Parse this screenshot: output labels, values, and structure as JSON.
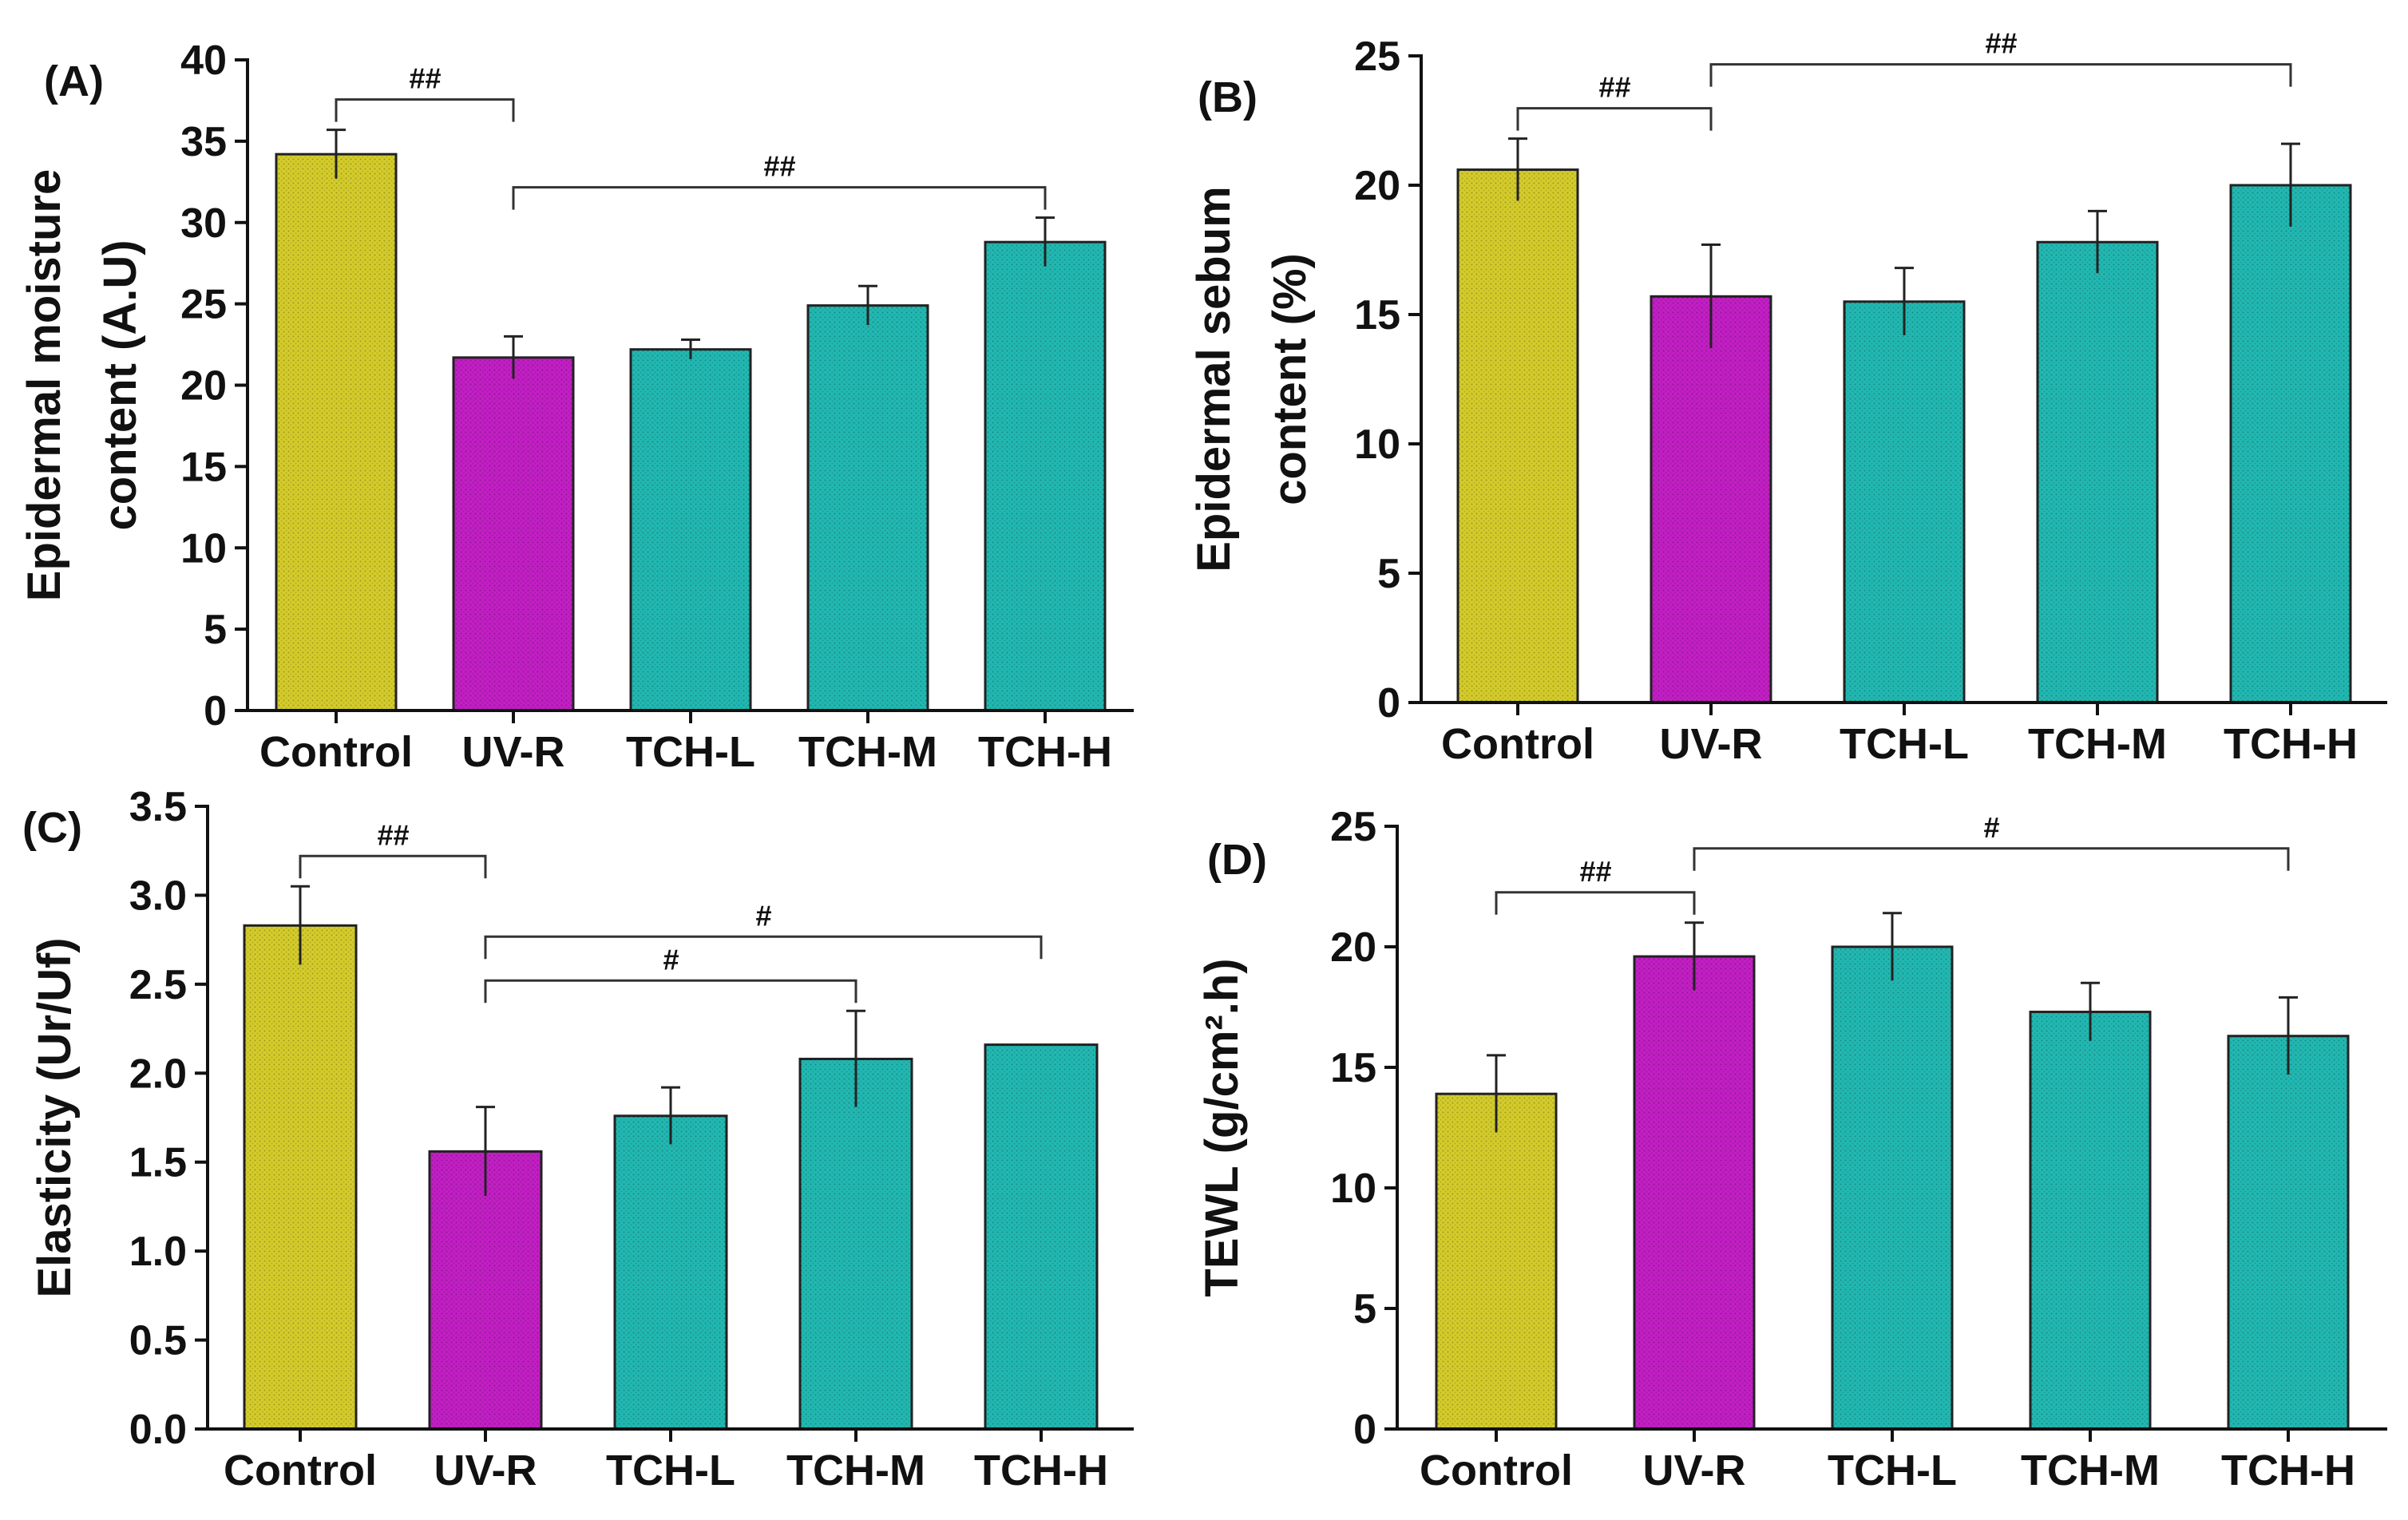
{
  "palette": {
    "Control": "#d4cc2b",
    "UV-R": "#c21fc4",
    "TCH-L": "#22b8b2",
    "TCH-M": "#22b8b2",
    "TCH-H": "#22b8b2"
  },
  "chart_data": [
    {
      "id": "A",
      "type": "bar",
      "panel_label": "(A)",
      "ylabel_lines": [
        "Epidermal moisture",
        "content (A.U)"
      ],
      "categories": [
        "Control",
        "UV-R",
        "TCH-L",
        "TCH-M",
        "TCH-H"
      ],
      "values": [
        34.2,
        21.7,
        22.2,
        24.9,
        28.8
      ],
      "errors": [
        1.5,
        1.3,
        0.6,
        1.2,
        1.5
      ],
      "ylim": [
        0,
        40
      ],
      "yticks": [
        0,
        5,
        10,
        15,
        20,
        25,
        30,
        35,
        40
      ],
      "brackets": [
        {
          "from": 0,
          "to": 1,
          "label": "##"
        },
        {
          "from": 1,
          "to": 4,
          "label": "##"
        }
      ]
    },
    {
      "id": "B",
      "type": "bar",
      "panel_label": "(B)",
      "ylabel_lines": [
        "Epidermal sebum",
        "content (%)"
      ],
      "categories": [
        "Control",
        "UV-R",
        "TCH-L",
        "TCH-M",
        "TCH-H"
      ],
      "values": [
        20.6,
        15.7,
        15.5,
        17.8,
        20.0
      ],
      "errors": [
        1.2,
        2.0,
        1.3,
        1.2,
        1.6
      ],
      "ylim": [
        0,
        25
      ],
      "yticks": [
        0,
        5,
        10,
        15,
        20,
        25
      ],
      "brackets": [
        {
          "from": 0,
          "to": 1,
          "label": "##"
        },
        {
          "from": 1,
          "to": 4,
          "label": "##"
        }
      ]
    },
    {
      "id": "C",
      "type": "bar",
      "panel_label": "(C)",
      "ylabel_lines": [
        "Elasticity (Ur/Uf)"
      ],
      "categories": [
        "Control",
        "UV-R",
        "TCH-L",
        "TCH-M",
        "TCH-H"
      ],
      "values": [
        2.83,
        1.56,
        1.76,
        2.08,
        2.16
      ],
      "errors": [
        0.22,
        0.25,
        0.16,
        0.27,
        0.0
      ],
      "ylim": [
        0,
        3.5
      ],
      "yticks": [
        "0.0",
        "0.5",
        "1.0",
        "1.5",
        "2.0",
        "2.5",
        "3.0",
        "3.5"
      ],
      "brackets": [
        {
          "from": 0,
          "to": 1,
          "label": "##"
        },
        {
          "from": 1,
          "to": 3,
          "label": "#"
        },
        {
          "from": 1,
          "to": 4,
          "label": "#"
        }
      ]
    },
    {
      "id": "D",
      "type": "bar",
      "panel_label": "(D)",
      "ylabel_lines": [
        "TEWL (g/cm².h)"
      ],
      "categories": [
        "Control",
        "UV-R",
        "TCH-L",
        "TCH-M",
        "TCH-H"
      ],
      "values": [
        13.9,
        19.6,
        20.0,
        17.3,
        16.3
      ],
      "errors": [
        1.6,
        1.4,
        1.4,
        1.2,
        1.6
      ],
      "ylim": [
        0,
        25
      ],
      "yticks": [
        0,
        5,
        10,
        15,
        20,
        25
      ],
      "brackets": [
        {
          "from": 0,
          "to": 1,
          "label": "##"
        },
        {
          "from": 1,
          "to": 4,
          "label": "#"
        }
      ]
    }
  ]
}
